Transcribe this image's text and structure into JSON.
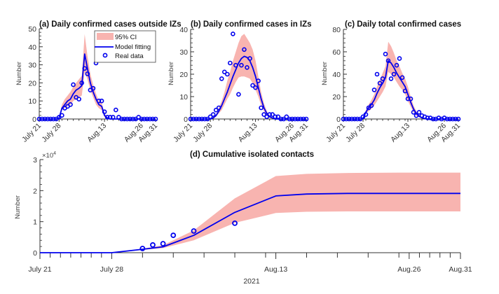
{
  "figure": {
    "x_tick_labels": [
      "July 21",
      "July 28",
      "Aug.13",
      "Aug.26",
      "Aug.31"
    ],
    "x_tick_days": [
      0,
      7,
      23,
      36,
      41
    ],
    "colors": {
      "ci_fill": "#f8b4b0",
      "model_line": "#0000ee",
      "data_marker": "#0000ee",
      "axis": "#333333"
    }
  },
  "legend": {
    "placement": "top-right of panel (a)",
    "entries": [
      "95% CI",
      "Model fitting",
      "Real data"
    ]
  },
  "chart_data": [
    {
      "type": "line",
      "panel": "a",
      "title": "(a) Daily confirmed cases outside IZs",
      "xlabel": "",
      "ylabel": "Number",
      "x_day_range": [
        0,
        41
      ],
      "x_start_date": "July 21",
      "ylim": [
        0,
        50
      ],
      "yticks": [
        0,
        10,
        20,
        30,
        40,
        50
      ],
      "x": [
        0,
        1,
        2,
        3,
        4,
        5,
        6,
        7,
        8,
        9,
        10,
        11,
        12,
        13,
        14,
        15,
        16,
        17,
        18,
        19,
        20,
        21,
        22,
        23,
        24,
        25,
        26,
        27,
        28,
        29,
        30,
        31,
        32,
        33,
        34,
        35,
        36,
        37,
        38,
        39,
        40,
        41
      ],
      "series": [
        {
          "name": "Real data",
          "values": [
            0,
            0,
            0,
            0,
            0,
            0,
            0,
            1,
            2,
            6,
            7,
            8,
            19,
            12,
            11,
            20,
            28,
            25,
            16,
            17,
            31,
            10,
            10,
            4,
            1,
            1,
            1,
            5,
            1,
            0,
            0,
            0,
            0,
            0,
            0,
            1,
            0,
            0,
            0,
            0,
            0,
            0
          ]
        },
        {
          "name": "Model fitting",
          "values": [
            0,
            0,
            0,
            0,
            0,
            0,
            0,
            0.5,
            6,
            8,
            10,
            11,
            14,
            16,
            17,
            18.5,
            36,
            28,
            20,
            15,
            11,
            8,
            7,
            2,
            0.5,
            0,
            0,
            0,
            0,
            0,
            0,
            0,
            0,
            0,
            0,
            0,
            0,
            0,
            0,
            0,
            0,
            0
          ]
        },
        {
          "name": "95% CI upper",
          "values": [
            0,
            0,
            0,
            0,
            0,
            0,
            0,
            1,
            8,
            11,
            13,
            15,
            18,
            20,
            22,
            24,
            47,
            35,
            25,
            19,
            14,
            10,
            9,
            3,
            1,
            0,
            0,
            0,
            0,
            0,
            0,
            0,
            0,
            0,
            0,
            0,
            0,
            0,
            0,
            0,
            0,
            0
          ]
        },
        {
          "name": "95% CI lower",
          "values": [
            0,
            0,
            0,
            0,
            0,
            0,
            0,
            0,
            5,
            6,
            7,
            8,
            10,
            11,
            12,
            13,
            26,
            22,
            16,
            12,
            8,
            6,
            5,
            1,
            0,
            0,
            0,
            0,
            0,
            0,
            0,
            0,
            0,
            0,
            0,
            0,
            0,
            0,
            0,
            0,
            0,
            0
          ]
        }
      ]
    },
    {
      "type": "line",
      "panel": "b",
      "title": "(b) Daily confirmed cases in IZs",
      "xlabel": "",
      "ylabel": "Number",
      "x_day_range": [
        0,
        41
      ],
      "x_start_date": "July 21",
      "ylim": [
        0,
        40
      ],
      "yticks": [
        0,
        10,
        20,
        30,
        40
      ],
      "x": [
        0,
        1,
        2,
        3,
        4,
        5,
        6,
        7,
        8,
        9,
        10,
        11,
        12,
        13,
        14,
        15,
        16,
        17,
        18,
        19,
        20,
        21,
        22,
        23,
        24,
        25,
        26,
        27,
        28,
        29,
        30,
        31,
        32,
        33,
        34,
        35,
        36,
        37,
        38,
        39,
        40,
        41
      ],
      "series": [
        {
          "name": "Real data",
          "values": [
            0,
            0,
            0,
            0,
            0,
            0,
            0,
            1,
            2,
            4,
            5,
            18,
            21,
            20,
            25,
            38,
            24,
            11,
            24,
            31,
            23,
            27,
            15,
            14,
            17,
            5,
            2,
            1,
            2,
            2,
            1,
            1,
            0,
            0,
            1,
            0,
            0,
            0,
            0,
            0,
            0,
            0
          ]
        },
        {
          "name": "Model fitting",
          "values": [
            0,
            0,
            0,
            0,
            0,
            0,
            0,
            0,
            0.5,
            1.5,
            3.5,
            6,
            9,
            12,
            15.5,
            19,
            22,
            25,
            27,
            28,
            27.5,
            26,
            23,
            19,
            14,
            9,
            5,
            2.5,
            1,
            0.5,
            0,
            0,
            0,
            0,
            0,
            0,
            0,
            0,
            0,
            0,
            0,
            0
          ]
        },
        {
          "name": "95% CI upper",
          "values": [
            0,
            0,
            0,
            0,
            0,
            0,
            0,
            0,
            1,
            2,
            5,
            8,
            12,
            17,
            21,
            26,
            30,
            34,
            37,
            38,
            36,
            34,
            31,
            26,
            19,
            12,
            7,
            3.5,
            1.5,
            0.5,
            0,
            0,
            0,
            0,
            0,
            0,
            0,
            0,
            0,
            0,
            0,
            0
          ]
        },
        {
          "name": "95% CI lower",
          "values": [
            0,
            0,
            0,
            0,
            0,
            0,
            0,
            0,
            0,
            1,
            2.5,
            4,
            6.5,
            9,
            11,
            14,
            16.5,
            18.5,
            19,
            19,
            18.5,
            18,
            16,
            13,
            10,
            6,
            3.5,
            1.5,
            0.5,
            0,
            0,
            0,
            0,
            0,
            0,
            0,
            0,
            0,
            0,
            0,
            0,
            0
          ]
        }
      ]
    },
    {
      "type": "line",
      "panel": "c",
      "title": "(c) Daily total confirmed cases",
      "xlabel": "",
      "ylabel": "Number",
      "x_day_range": [
        0,
        41
      ],
      "x_start_date": "July 21",
      "ylim": [
        0,
        80
      ],
      "yticks": [
        0,
        20,
        40,
        60,
        80
      ],
      "x": [
        0,
        1,
        2,
        3,
        4,
        5,
        6,
        7,
        8,
        9,
        10,
        11,
        12,
        13,
        14,
        15,
        16,
        17,
        18,
        19,
        20,
        21,
        22,
        23,
        24,
        25,
        26,
        27,
        28,
        29,
        30,
        31,
        32,
        33,
        34,
        35,
        36,
        37,
        38,
        39,
        40,
        41
      ],
      "series": [
        {
          "name": "Real data",
          "values": [
            0,
            0,
            0,
            0,
            0,
            0,
            0,
            2,
            4,
            10,
            12,
            26,
            40,
            32,
            36,
            58,
            52,
            36,
            40,
            48,
            54,
            37,
            25,
            18,
            18,
            6,
            3,
            6,
            3,
            2,
            1,
            1,
            0,
            0,
            1,
            0,
            1,
            0,
            0,
            0,
            0,
            0
          ]
        },
        {
          "name": "Model fitting",
          "values": [
            0,
            0,
            0,
            0,
            0,
            0,
            0,
            0.5,
            6,
            10,
            13,
            17,
            23,
            28,
            32,
            37,
            52,
            50,
            46,
            41,
            37,
            33,
            29,
            22,
            15,
            9,
            5,
            2.5,
            1,
            0.5,
            0,
            0,
            0,
            0,
            0,
            0,
            0,
            0,
            0,
            0,
            0,
            0
          ]
        },
        {
          "name": "95% CI upper",
          "values": [
            0,
            0,
            0,
            0,
            0,
            0,
            0,
            1,
            8,
            13,
            17,
            22,
            29,
            35,
            41,
            47,
            69,
            65,
            59,
            52,
            47,
            41,
            36,
            29,
            20,
            12,
            7,
            3.5,
            1.5,
            0.5,
            0,
            0,
            0,
            0,
            0,
            0,
            0,
            0,
            0,
            0,
            0,
            0
          ]
        },
        {
          "name": "95% CI lower",
          "values": [
            0,
            0,
            0,
            0,
            0,
            0,
            0,
            0,
            5,
            7,
            9,
            12,
            16,
            20,
            24,
            29,
            42,
            40,
            37,
            33,
            29,
            26,
            22,
            16,
            11,
            6,
            3,
            1.5,
            0.5,
            0,
            0,
            0,
            0,
            0,
            0,
            0,
            0,
            0,
            0,
            0,
            0,
            0
          ]
        }
      ]
    },
    {
      "type": "line",
      "panel": "d",
      "title": "(d) Cumulative isolated contacts",
      "xlabel": "2021",
      "ylabel": "Number",
      "y_multiplier_label": "×10^4",
      "x_day_range": [
        0,
        41
      ],
      "x_start_date": "July 21",
      "ylim": [
        0,
        30000
      ],
      "yticks": [
        0,
        10000,
        20000,
        30000
      ],
      "ytick_labels": [
        "0",
        "1",
        "2",
        "3"
      ],
      "real_data": {
        "x": [
          10,
          11,
          12,
          13,
          15,
          19
        ],
        "values": [
          1350,
          2500,
          2900,
          5600,
          7000,
          9500
        ]
      },
      "model_x": [
        0,
        7,
        10,
        12,
        15,
        19,
        23,
        26,
        30,
        35,
        41
      ],
      "series": [
        {
          "name": "Model fitting",
          "values": [
            0,
            0,
            1100,
            1900,
            5600,
            13000,
            18300,
            18900,
            19100,
            19100,
            19100
          ]
        },
        {
          "name": "95% CI upper",
          "values": [
            0,
            0,
            1300,
            2400,
            7200,
            17500,
            24700,
            25400,
            25700,
            25800,
            25800
          ]
        },
        {
          "name": "95% CI lower",
          "values": [
            0,
            0,
            900,
            1500,
            4000,
            9600,
            12800,
            13200,
            13300,
            13300,
            13300
          ]
        }
      ]
    }
  ]
}
